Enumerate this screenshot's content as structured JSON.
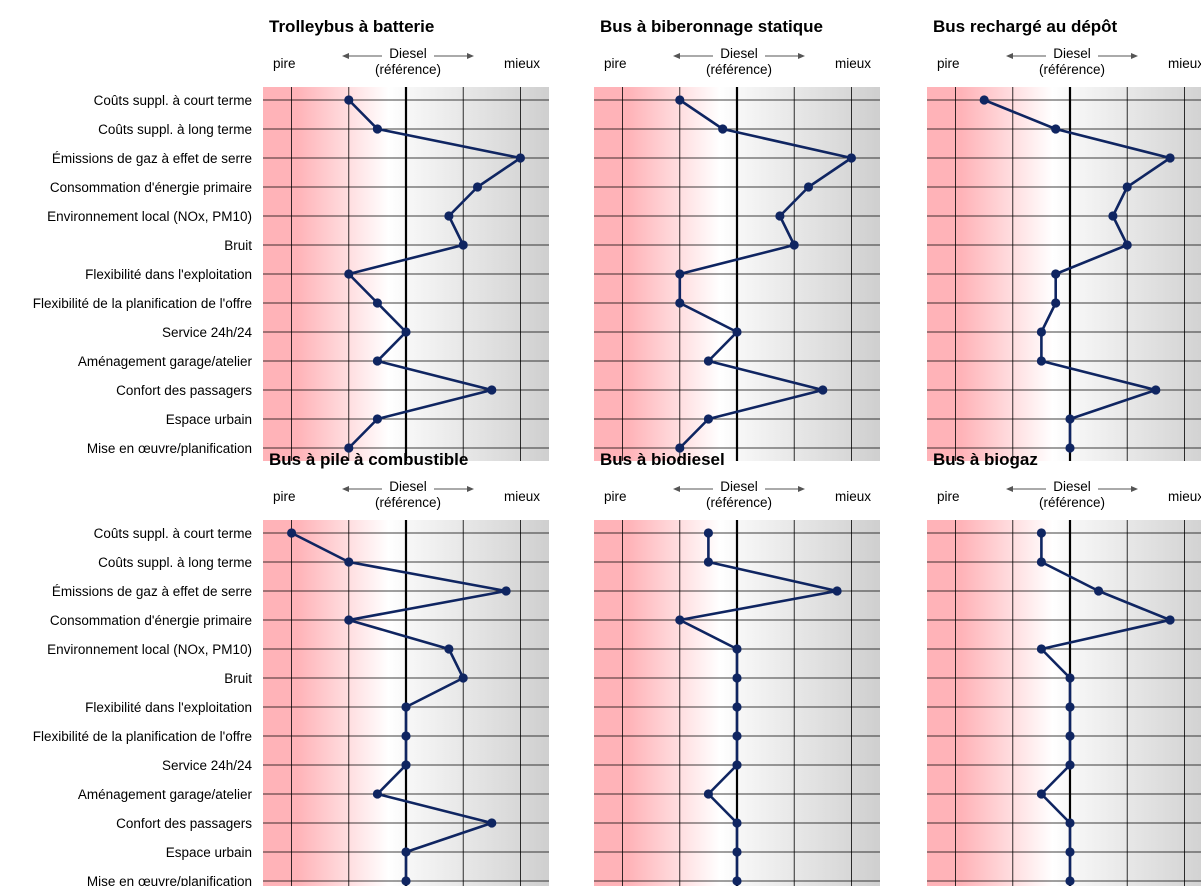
{
  "header": {
    "worse": "pire",
    "reference_line1": "Diesel",
    "reference_line2": "(référence)",
    "better": "mieux"
  },
  "categories": [
    "Coûts suppl. à court terme",
    "Coûts suppl. à long terme",
    "Émissions de gaz à effet de serre",
    "Consommation d'énergie primaire",
    "Environnement local (NOx, PM10)",
    "Bruit",
    "Flexibilité dans l'exploitation",
    "Flexibilité de la planification de l'offre",
    "Service 24h/24",
    "Aménagement garage/atelier",
    "Confort des passagers",
    "Espace urbain",
    "Mise en œuvre/planification"
  ],
  "colors": {
    "line": "#0f2561",
    "marker": "#0f2561",
    "worse_zone": "#ffb3b8",
    "better_zone": "#cfcfcf",
    "grid": "#000000"
  },
  "chart_data": [
    {
      "type": "line",
      "title": "Trolleybus à batterie",
      "xlim": [
        -2.5,
        2.5
      ],
      "reference": 0,
      "values": [
        -1,
        -0.5,
        2,
        1.25,
        0.75,
        1,
        -1,
        -0.5,
        0,
        -0.5,
        1.5,
        -0.5,
        -1
      ]
    },
    {
      "type": "line",
      "title": "Bus à biberonnage statique",
      "xlim": [
        -2.5,
        2.5
      ],
      "reference": 0,
      "values": [
        -1,
        -0.25,
        2,
        1.25,
        0.75,
        1,
        -1,
        -1,
        0,
        -0.5,
        1.5,
        -0.5,
        -1
      ]
    },
    {
      "type": "line",
      "title": "Bus rechargé au dépôt",
      "xlim": [
        -2.5,
        2.5
      ],
      "reference": 0,
      "values": [
        -1.5,
        -0.25,
        1.75,
        1,
        0.75,
        1,
        -0.25,
        -0.25,
        -0.5,
        -0.5,
        1.5,
        0,
        0
      ]
    },
    {
      "type": "line",
      "title": "Bus à pile à combustible",
      "xlim": [
        -2.5,
        2.5
      ],
      "reference": 0,
      "values": [
        -2,
        -1,
        1.75,
        -1,
        0.75,
        1,
        0,
        0,
        0,
        -0.5,
        1.5,
        0,
        0
      ]
    },
    {
      "type": "line",
      "title": "Bus à biodiesel",
      "xlim": [
        -2.5,
        2.5
      ],
      "reference": 0,
      "values": [
        -0.5,
        -0.5,
        1.75,
        -1,
        0,
        0,
        0,
        0,
        0,
        -0.5,
        0,
        0,
        0
      ]
    },
    {
      "type": "line",
      "title": "Bus à biogaz",
      "xlim": [
        -2.5,
        2.5
      ],
      "reference": 0,
      "values": [
        -0.5,
        -0.5,
        0.5,
        1.75,
        -0.5,
        0,
        0,
        0,
        0,
        -0.5,
        0,
        0,
        0
      ]
    }
  ]
}
